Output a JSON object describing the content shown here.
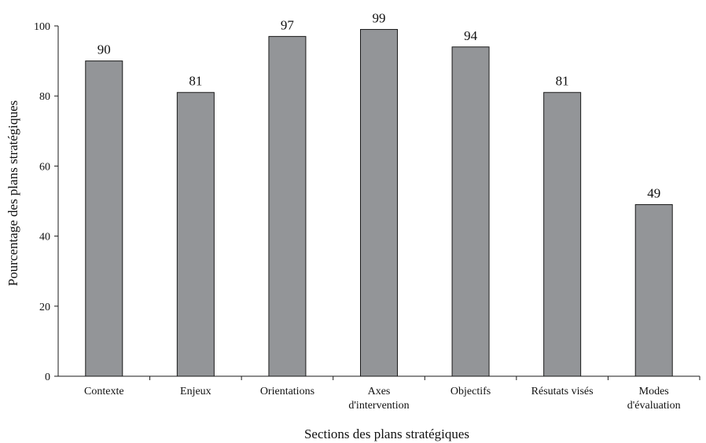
{
  "chart_data": {
    "type": "bar",
    "categories": [
      [
        "Contexte"
      ],
      [
        "Enjeux"
      ],
      [
        "Orientations"
      ],
      [
        "Axes",
        "d'intervention"
      ],
      [
        "Objectifs"
      ],
      [
        "Résutats visés"
      ],
      [
        "Modes",
        "d'évaluation"
      ]
    ],
    "values": [
      90,
      81,
      97,
      99,
      94,
      81,
      49
    ],
    "title": "",
    "xlabel": "Sections des plans stratégiques",
    "ylabel": "Pourcentage des plans stratégiques",
    "ylim": [
      0,
      100
    ],
    "yticks": [
      0,
      20,
      40,
      60,
      80,
      100
    ],
    "grid": false,
    "colors": {
      "bar_fill": "#939598",
      "bar_stroke": "#1a1a1a"
    }
  }
}
